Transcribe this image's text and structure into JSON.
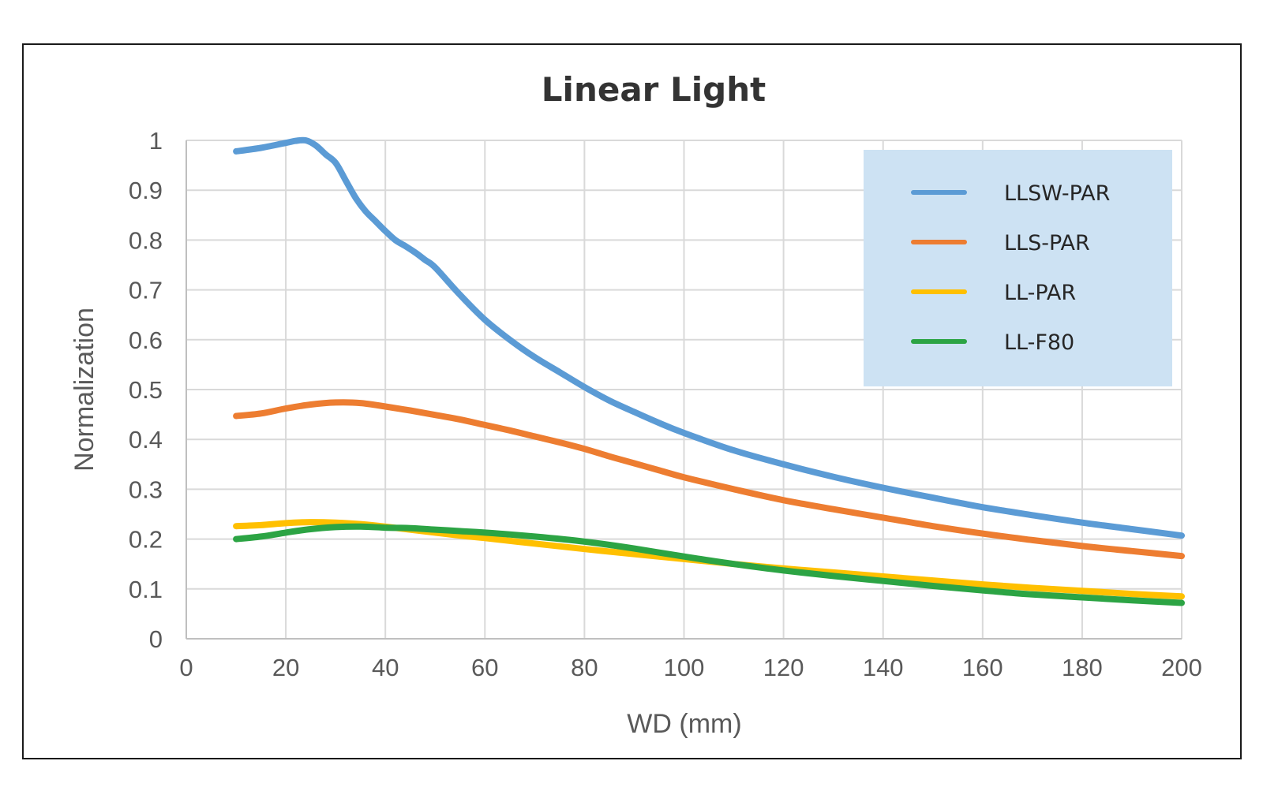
{
  "chart_data": {
    "type": "line",
    "title": "Linear Light",
    "xlabel": "WD (mm)",
    "ylabel": "Normalization",
    "xlim": [
      0,
      200
    ],
    "ylim": [
      0,
      1
    ],
    "xticks": [
      "0",
      "20",
      "40",
      "60",
      "80",
      "100",
      "120",
      "140",
      "160",
      "180",
      "200"
    ],
    "yticks": [
      "0",
      "0.1",
      "0.2",
      "0.3",
      "0.4",
      "0.5",
      "0.6",
      "0.7",
      "0.8",
      "0.9",
      "1"
    ],
    "grid": true,
    "legend_position": "top-right",
    "series": [
      {
        "name": "LLSW-PAR",
        "color": "#5b9bd5",
        "x": [
          10,
          15,
          20,
          22,
          24,
          26,
          28,
          30,
          32,
          34,
          36,
          38,
          40,
          42,
          44,
          46,
          48,
          50,
          55,
          60,
          65,
          70,
          75,
          80,
          85,
          90,
          95,
          100,
          110,
          120,
          130,
          140,
          150,
          160,
          170,
          180,
          190,
          200
        ],
        "values": [
          0.978,
          0.985,
          0.995,
          0.999,
          1.0,
          0.99,
          0.972,
          0.955,
          0.92,
          0.885,
          0.858,
          0.838,
          0.818,
          0.8,
          0.788,
          0.775,
          0.76,
          0.745,
          0.69,
          0.64,
          0.6,
          0.565,
          0.535,
          0.505,
          0.478,
          0.455,
          0.433,
          0.413,
          0.378,
          0.35,
          0.325,
          0.303,
          0.283,
          0.264,
          0.248,
          0.233,
          0.22,
          0.207
        ]
      },
      {
        "name": "LLS-PAR",
        "color": "#ed7d31",
        "x": [
          10,
          15,
          20,
          25,
          30,
          35,
          40,
          45,
          50,
          55,
          60,
          65,
          70,
          75,
          80,
          85,
          90,
          95,
          100,
          110,
          120,
          130,
          140,
          150,
          160,
          170,
          180,
          190,
          200
        ],
        "values": [
          0.447,
          0.452,
          0.462,
          0.47,
          0.474,
          0.473,
          0.466,
          0.458,
          0.449,
          0.44,
          0.429,
          0.418,
          0.406,
          0.394,
          0.381,
          0.366,
          0.352,
          0.338,
          0.324,
          0.3,
          0.278,
          0.26,
          0.243,
          0.226,
          0.211,
          0.198,
          0.186,
          0.176,
          0.166
        ]
      },
      {
        "name": "LL-PAR",
        "color": "#ffc000",
        "x": [
          10,
          15,
          20,
          25,
          30,
          35,
          40,
          45,
          50,
          55,
          60,
          70,
          80,
          90,
          100,
          110,
          120,
          130,
          140,
          150,
          160,
          170,
          180,
          190,
          200
        ],
        "values": [
          0.226,
          0.228,
          0.232,
          0.234,
          0.233,
          0.23,
          0.225,
          0.219,
          0.213,
          0.207,
          0.202,
          0.191,
          0.18,
          0.17,
          0.16,
          0.15,
          0.141,
          0.133,
          0.125,
          0.117,
          0.109,
          0.102,
          0.096,
          0.09,
          0.085
        ]
      },
      {
        "name": "LL-F80",
        "color": "#2ca444",
        "x": [
          10,
          15,
          20,
          25,
          30,
          35,
          40,
          45,
          50,
          55,
          60,
          70,
          80,
          90,
          100,
          110,
          120,
          130,
          140,
          150,
          160,
          170,
          180,
          190,
          200
        ],
        "values": [
          0.2,
          0.205,
          0.213,
          0.22,
          0.224,
          0.225,
          0.223,
          0.222,
          0.219,
          0.216,
          0.213,
          0.205,
          0.195,
          0.181,
          0.165,
          0.15,
          0.137,
          0.126,
          0.116,
          0.106,
          0.097,
          0.089,
          0.083,
          0.077,
          0.072
        ]
      }
    ]
  }
}
